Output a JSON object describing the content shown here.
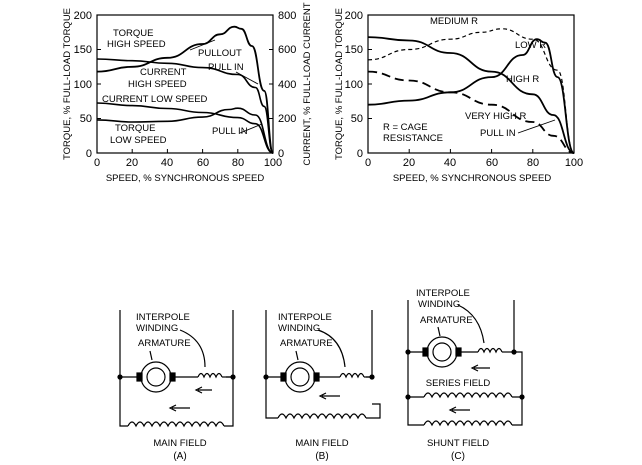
{
  "left_chart": {
    "ylabel_left": "TORQUE, % FULL-LOAD TORQUE",
    "ylabel_right": "CURRENT, % FULL-LOAD CURRENT",
    "xlabel": "SPEED, % SYNCHRONOUS SPEED",
    "x_ticks": [
      "0",
      "20",
      "40",
      "60",
      "80",
      "100"
    ],
    "yl_ticks": [
      "0",
      "50",
      "100",
      "150",
      "200"
    ],
    "yr_ticks": [
      "0",
      "200",
      "400",
      "600",
      "800"
    ],
    "labels": {
      "torque_high_1": "TORQUE",
      "torque_high_2": "HIGH SPEED",
      "pullout": "PULLOUT",
      "current_high_1": "CURRENT",
      "current_high_2": "HIGH SPEED",
      "pull_in_high": "PULL IN",
      "current_low": "CURRENT LOW SPEED",
      "torque_low_1": "TORQUE",
      "torque_low_2": "LOW SPEED",
      "pull_in_low": "PULL IN"
    }
  },
  "right_chart": {
    "ylabel": "TORQUE, % FULL-LOAD TORQUE",
    "xlabel": "SPEED, % SYNCHRONOUS SPEED",
    "x_ticks": [
      "0",
      "20",
      "40",
      "60",
      "80",
      "100"
    ],
    "y_ticks": [
      "0",
      "50",
      "100",
      "150",
      "200"
    ],
    "labels": {
      "medium_r": "MEDIUM R",
      "low_r": "LOW R",
      "high_r": "HIGH R",
      "very_high_r": "VERY HIGH R",
      "cage_1": "R = CAGE",
      "cage_2": "RESISTANCE",
      "pull_in": "PULL IN"
    }
  },
  "chart_data": [
    {
      "type": "line",
      "x": [
        0,
        20,
        40,
        60,
        80,
        100
      ],
      "xlabel": "SPEED, % SYNCHRONOUS SPEED",
      "ylabel": "TORQUE, % FULL-LOAD TORQUE",
      "ylim": [
        0,
        200
      ],
      "xlim": [
        0,
        100
      ],
      "series": [
        {
          "name": "TORQUE HIGH SPEED",
          "x": [
            0,
            20,
            40,
            60,
            70,
            78,
            82,
            88,
            95,
            100
          ],
          "y": [
            118,
            125,
            138,
            158,
            172,
            183,
            180,
            155,
            90,
            0
          ]
        },
        {
          "name": "CURRENT HIGH SPEED",
          "axis": "right",
          "x": [
            0,
            20,
            40,
            60,
            80,
            90,
            95,
            100
          ],
          "y": [
            545,
            535,
            520,
            495,
            455,
            380,
            270,
            0
          ]
        },
        {
          "name": "CURRENT LOW SPEED",
          "axis": "right",
          "x": [
            0,
            20,
            40,
            60,
            80,
            90,
            100
          ],
          "y": [
            290,
            275,
            258,
            235,
            205,
            170,
            0
          ]
        },
        {
          "name": "TORQUE LOW SPEED",
          "x": [
            0,
            20,
            40,
            60,
            75,
            80,
            90,
            100
          ],
          "y": [
            48,
            45,
            46,
            52,
            63,
            65,
            55,
            0
          ]
        }
      ],
      "yr_ticks": [
        0,
        200,
        400,
        600,
        800
      ]
    },
    {
      "type": "line",
      "x": [
        0,
        20,
        40,
        60,
        80,
        100
      ],
      "xlabel": "SPEED, % SYNCHRONOUS SPEED",
      "ylabel": "TORQUE, % FULL-LOAD TORQUE",
      "ylim": [
        0,
        200
      ],
      "xlim": [
        0,
        100
      ],
      "series": [
        {
          "name": "LOW R",
          "x": [
            0,
            20,
            40,
            60,
            75,
            82,
            86,
            92,
            100
          ],
          "y": [
            70,
            76,
            88,
            110,
            142,
            165,
            160,
            110,
            0
          ]
        },
        {
          "name": "MEDIUM R",
          "x": [
            0,
            20,
            40,
            55,
            65,
            80,
            92,
            100
          ],
          "y": [
            135,
            150,
            165,
            175,
            180,
            165,
            120,
            0
          ]
        },
        {
          "name": "HIGH R",
          "x": [
            0,
            20,
            40,
            60,
            80,
            90,
            100
          ],
          "y": [
            168,
            163,
            145,
            118,
            85,
            55,
            0
          ]
        },
        {
          "name": "VERY HIGH R",
          "x": [
            0,
            20,
            40,
            60,
            80,
            90,
            100
          ],
          "y": [
            118,
            105,
            88,
            70,
            45,
            25,
            0
          ]
        }
      ]
    }
  ],
  "circuits": {
    "A": {
      "interpole": [
        "INTERPOLE",
        "WINDING"
      ],
      "armature": "ARMATURE",
      "field": "MAIN FIELD",
      "caption": "(A)"
    },
    "B": {
      "interpole": [
        "INTERPOLE",
        "WINDING"
      ],
      "armature": "ARMATURE",
      "field": "MAIN FIELD",
      "caption": "(B)"
    },
    "C": {
      "interpole": [
        "INTERPOLE",
        "WINDING"
      ],
      "armature": "ARMATURE",
      "series_field": "SERIES FIELD",
      "shunt_field": "SHUNT FIELD",
      "caption": "(C)"
    }
  }
}
